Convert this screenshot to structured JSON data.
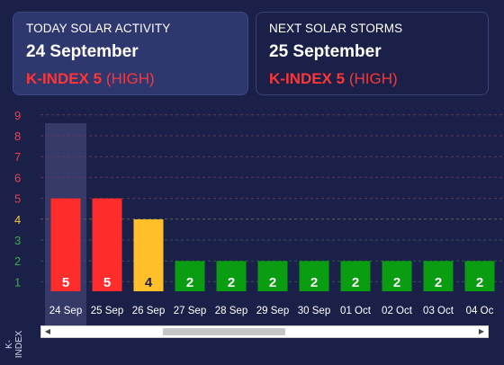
{
  "today": {
    "label": "TODAY SOLAR ACTIVITY",
    "date": "24 September",
    "k_label": "K-INDEX",
    "k_value": "5",
    "level": "(HIGH)"
  },
  "next": {
    "label": "NEXT SOLAR STORMS",
    "date": "25 September",
    "k_label": "K-INDEX",
    "k_value": "5",
    "level": "(HIGH)"
  },
  "colors": {
    "high": "#ff2c2c",
    "moderate": "#ffbf2a",
    "low": "#0a9d12",
    "ytick_high": "#ff3b3b",
    "ytick_mod": "#ffc531",
    "ytick_low": "#2dbb38"
  },
  "chart_data": {
    "type": "bar",
    "ylabel": "K-INDEX",
    "yticks": [
      "1",
      "2",
      "3",
      "4",
      "5",
      "6",
      "7",
      "8",
      "9"
    ],
    "ylim": [
      0,
      9
    ],
    "categories": [
      "24 Sep",
      "25 Sep",
      "26 Sep",
      "27 Sep",
      "28 Sep",
      "29 Sep",
      "30 Sep",
      "01 Oct",
      "02 Oct",
      "03 Oct",
      "04 Oc"
    ],
    "values": [
      5,
      5,
      4,
      2,
      2,
      2,
      2,
      2,
      2,
      2,
      2
    ],
    "value_labels": [
      "5",
      "5",
      "4",
      "2",
      "2",
      "2",
      "2",
      "2",
      "2",
      "2",
      "2"
    ],
    "highlighted_category": "24 Sep",
    "grid": "dashed horizontal"
  }
}
